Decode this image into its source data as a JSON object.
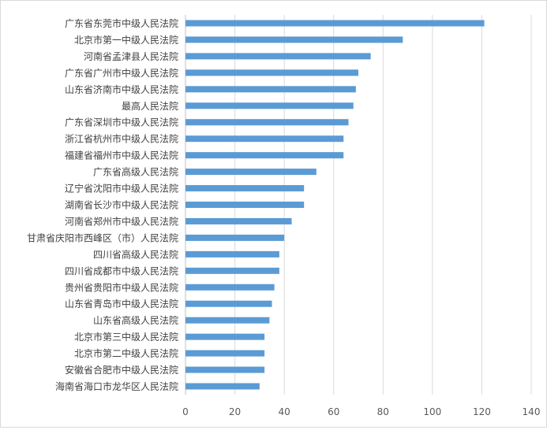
{
  "chart_data": {
    "type": "bar",
    "orientation": "horizontal",
    "title": "",
    "xlabel": "",
    "ylabel": "",
    "xlim": [
      0,
      140
    ],
    "x_ticks": [
      0,
      20,
      40,
      60,
      80,
      100,
      120,
      140
    ],
    "grid": "vertical",
    "legend": "none",
    "bar_color": "#5b9bd5",
    "grid_color": "#d9d9d9",
    "categories": [
      "广东省东莞市中级人民法院",
      "北京市第一中级人民法院",
      "河南省孟津县人民法院",
      "广东省广州市中级人民法院",
      "山东省济南市中级人民法院",
      "最高人民法院",
      "广东省深圳市中级人民法院",
      "浙江省杭州市中级人民法院",
      "福建省福州市中级人民法院",
      "广东省高级人民法院",
      "辽宁省沈阳市中级人民法院",
      "湖南省长沙市中级人民法院",
      "河南省郑州市中级人民法院",
      "甘肃省庆阳市西峰区（市）人民法院",
      "四川省高级人民法院",
      "四川省成都市中级人民法院",
      "贵州省贵阳市中级人民法院",
      "山东省青岛市中级人民法院",
      "山东省高级人民法院",
      "北京市第三中级人民法院",
      "北京市第二中级人民法院",
      "安徽省合肥市中级人民法院",
      "海南省海口市龙华区人民法院"
    ],
    "values": [
      121,
      88,
      75,
      70,
      69,
      68,
      66,
      64,
      64,
      53,
      48,
      48,
      43,
      40,
      38,
      38,
      36,
      35,
      34,
      32,
      32,
      32,
      30
    ]
  }
}
